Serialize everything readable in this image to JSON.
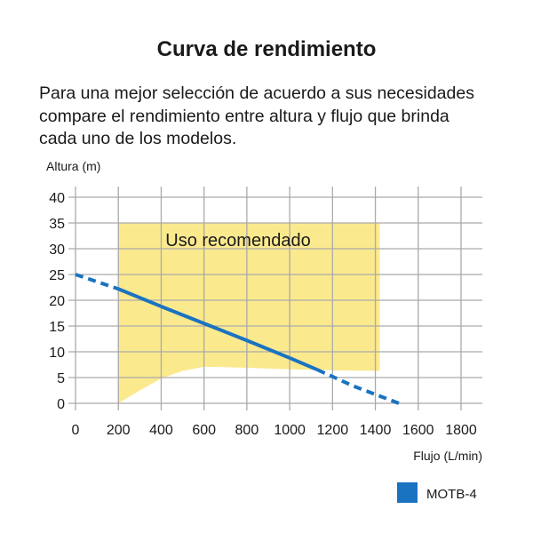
{
  "header": {
    "title": "Curva de rendimiento",
    "description_lines": [
      "Para una mejor selección de acuerdo a sus necesidades",
      "compare el rendimiento entre altura y flujo que brinda",
      "cada uno de los modelos."
    ]
  },
  "chart_data": {
    "type": "line",
    "title": "",
    "xlabel": "Flujo (L/min)",
    "ylabel": "Altura (m)",
    "xlim": [
      0,
      1800
    ],
    "ylim": [
      0,
      40
    ],
    "xticks": [
      0,
      200,
      400,
      600,
      800,
      1000,
      1200,
      1400,
      1600,
      1800
    ],
    "yticks": [
      0,
      5,
      10,
      15,
      20,
      25,
      30,
      35,
      40
    ],
    "grid": true,
    "legend_position": "bottom-right",
    "colors": {
      "series": "#1a73c1",
      "region": "#fbe98e",
      "grid": "#aaaaaa"
    },
    "region": {
      "label": "Uso recomendado",
      "x_range": [
        200,
        1420
      ],
      "top": 35,
      "bottom_boundary": [
        [
          200,
          0
        ],
        [
          300,
          2.5
        ],
        [
          400,
          4.8
        ],
        [
          500,
          6.3
        ],
        [
          600,
          7.1
        ],
        [
          800,
          6.9
        ],
        [
          1000,
          6.6
        ],
        [
          1200,
          6.4
        ],
        [
          1420,
          6.3
        ]
      ]
    },
    "series": [
      {
        "name": "MOTB-4",
        "points": [
          [
            0,
            25
          ],
          [
            200,
            22.2
          ],
          [
            400,
            18.8
          ],
          [
            600,
            15.5
          ],
          [
            800,
            12.2
          ],
          [
            1000,
            8.8
          ],
          [
            1130,
            6.5
          ],
          [
            1300,
            3.3
          ],
          [
            1510,
            0
          ]
        ],
        "solid_range": [
          200,
          1130
        ]
      }
    ]
  }
}
